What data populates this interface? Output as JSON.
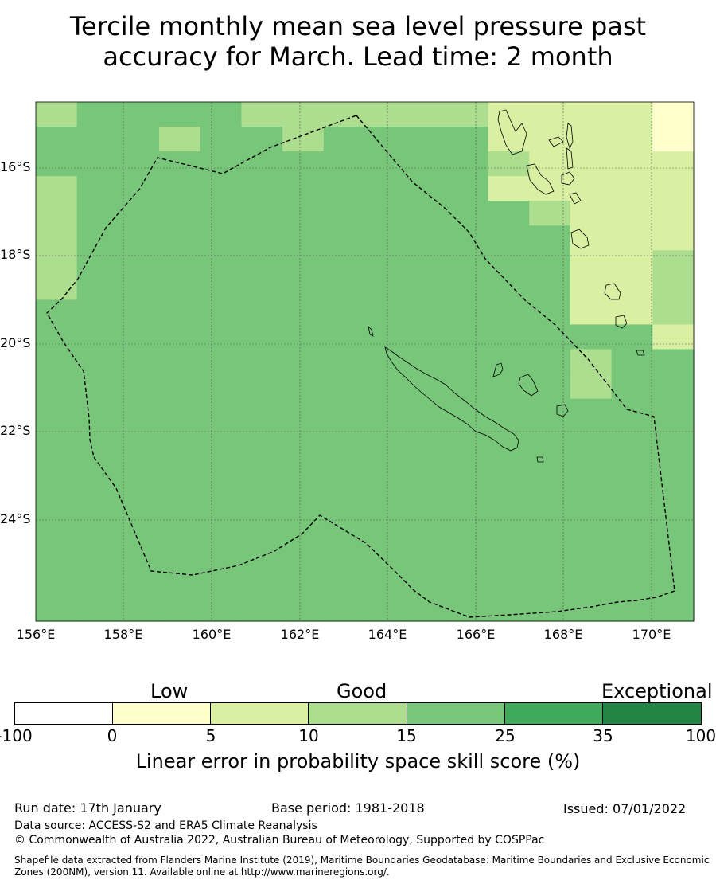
{
  "title_line1": "Tercile monthly mean sea level pressure past",
  "title_line2": "accuracy for March. Lead time: 2 month",
  "map": {
    "lat_labels": [
      "16°S",
      "18°S",
      "20°S",
      "22°S",
      "24°S"
    ],
    "lon_labels": [
      "156°E",
      "158°E",
      "160°E",
      "162°E",
      "164°E",
      "166°E",
      "168°E",
      "170°E"
    ],
    "colors": {
      "c0": "#ffffff",
      "c1": "#ffffcc",
      "c2": "#d9f0a3",
      "c3": "#addd8e",
      "c4": "#78c679",
      "c5": "#41ab5d",
      "c6": "#238443"
    },
    "grid_rows": [
      "3444443333322221",
      "4444443444422221",
      "4444444444422222",
      "3444444444422222",
      "3444444444443222",
      "3444444444444222",
      "3444444444444223",
      "3444444444444223",
      "4444444444444223",
      "4444444444444442",
      "4444444444444344",
      "4444444444444344",
      "4444444444444444",
      "4444444444444444",
      "4444444444444444",
      "4444444444444444",
      "4444444444444444",
      "4444444444444444",
      "4444444444444444",
      "4444444444444444",
      "4444444444444444"
    ],
    "overrides": [
      {
        "row": 0,
        "col": 5,
        "v": 3
      },
      {
        "row": 1,
        "col": 3,
        "v": 3
      },
      {
        "row": 2,
        "col": 11,
        "v": 3
      }
    ]
  },
  "colorbar": {
    "categories": [
      "Low",
      "Good",
      "Exceptional"
    ],
    "ticks": [
      "-100",
      "0",
      "5",
      "10",
      "15",
      "25",
      "35",
      "100"
    ],
    "label": "Linear error in probability space skill score (%)"
  },
  "footer": {
    "run_date": "Run date: 17th January",
    "base_period": "Base period: 1981-2018",
    "issued": "Issued: 07/01/2022",
    "data_source": "Data source: ACCESS-S2 and ERA5 Climate Reanalysis",
    "copyright": "© Commonwealth of Australia 2022, Australian Bureau of Meteorology, Supported by COSPPac",
    "shapefile": "Shapefile data extracted from Flanders Marine Institute (2019), Maritime Boundaries Geodatabase: Maritime Boundaries and Exclusive Economic Zones (200NM), version 11. Available online at http://www.marineregions.org/."
  }
}
